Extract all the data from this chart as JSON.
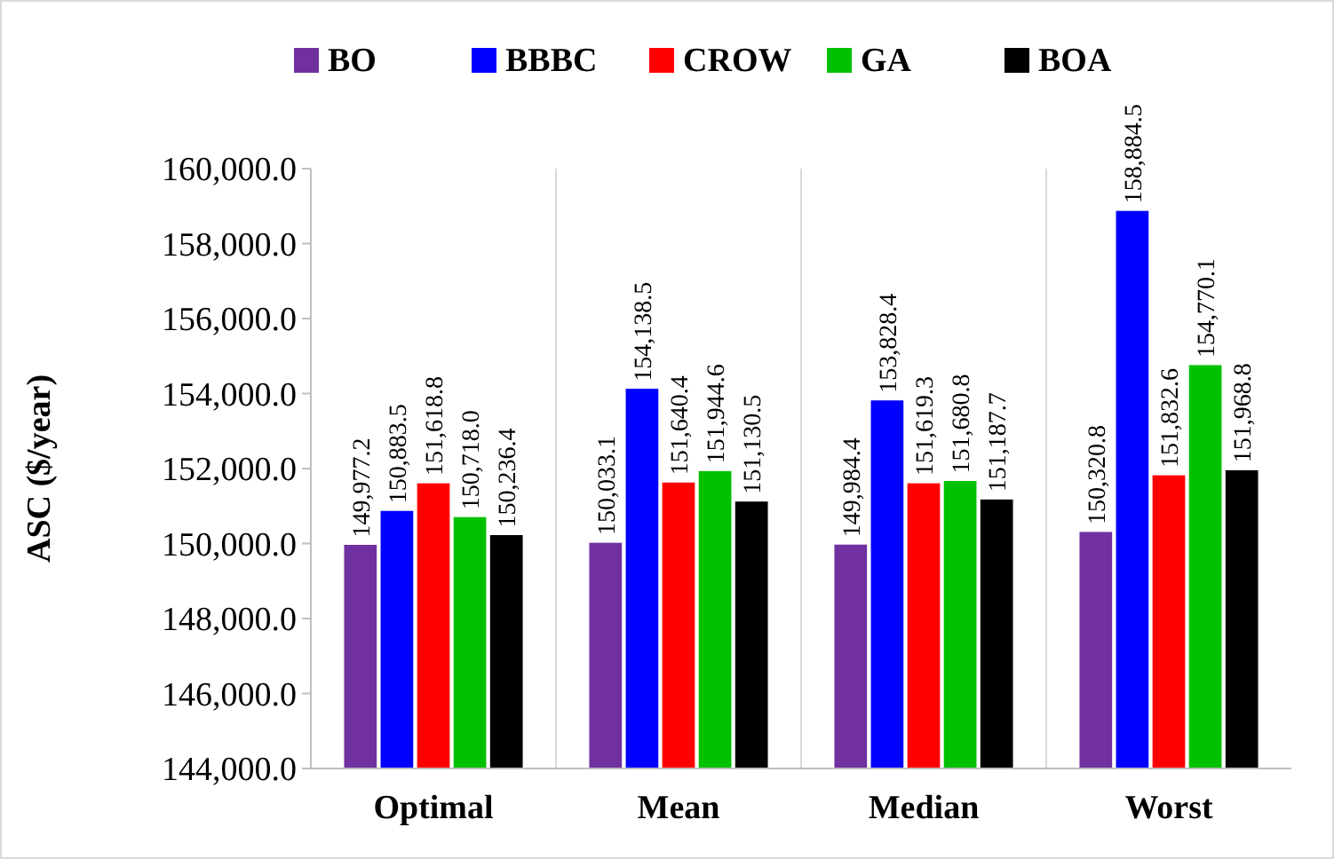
{
  "chart_data": {
    "type": "bar",
    "ylabel": "ASC ($/year)",
    "categories": [
      "Optimal",
      "Mean",
      "Median",
      "Worst"
    ],
    "series": [
      {
        "name": "BO",
        "color": "#7030a0",
        "values": [
          149977.2,
          150033.1,
          149984.4,
          150320.8
        ],
        "value_labels": [
          "149,977.2",
          "150,033.1",
          "149,984.4",
          "150,320.8"
        ]
      },
      {
        "name": "BBBC",
        "color": "#0000ff",
        "values": [
          150883.5,
          154138.5,
          153828.4,
          158884.5
        ],
        "value_labels": [
          "150,883.5",
          "154,138.5",
          "153,828.4",
          "158,884.5"
        ]
      },
      {
        "name": "CROW",
        "color": "#ff0000",
        "values": [
          151618.8,
          151640.4,
          151619.3,
          151832.6
        ],
        "value_labels": [
          "151,618.8",
          "151,640.4",
          "151,619.3",
          "151,832.6"
        ]
      },
      {
        "name": "GA",
        "color": "#00c000",
        "values": [
          150718.0,
          151944.6,
          151680.8,
          154770.1
        ],
        "value_labels": [
          "150,718.0",
          "151,944.6",
          "151,680.8",
          "154,770.1"
        ]
      },
      {
        "name": "BOA",
        "color": "#000000",
        "values": [
          150236.4,
          151130.5,
          151187.7,
          151968.8
        ],
        "value_labels": [
          "150,236.4",
          "151,130.5",
          "151,187.7",
          "151,968.8"
        ]
      }
    ],
    "ylim": [
      144000,
      160000
    ],
    "yticks": [
      {
        "value": 144000,
        "label": "144,000.0"
      },
      {
        "value": 146000,
        "label": "146,000.0"
      },
      {
        "value": 148000,
        "label": "148,000.0"
      },
      {
        "value": 150000,
        "label": "150,000.0"
      },
      {
        "value": 152000,
        "label": "152,000.0"
      },
      {
        "value": 154000,
        "label": "154,000.0"
      },
      {
        "value": 156000,
        "label": "156,000.0"
      },
      {
        "value": 158000,
        "label": "158,000.0"
      },
      {
        "value": 160000,
        "label": "160,000.0"
      }
    ],
    "grid": "x",
    "legend": "top"
  }
}
